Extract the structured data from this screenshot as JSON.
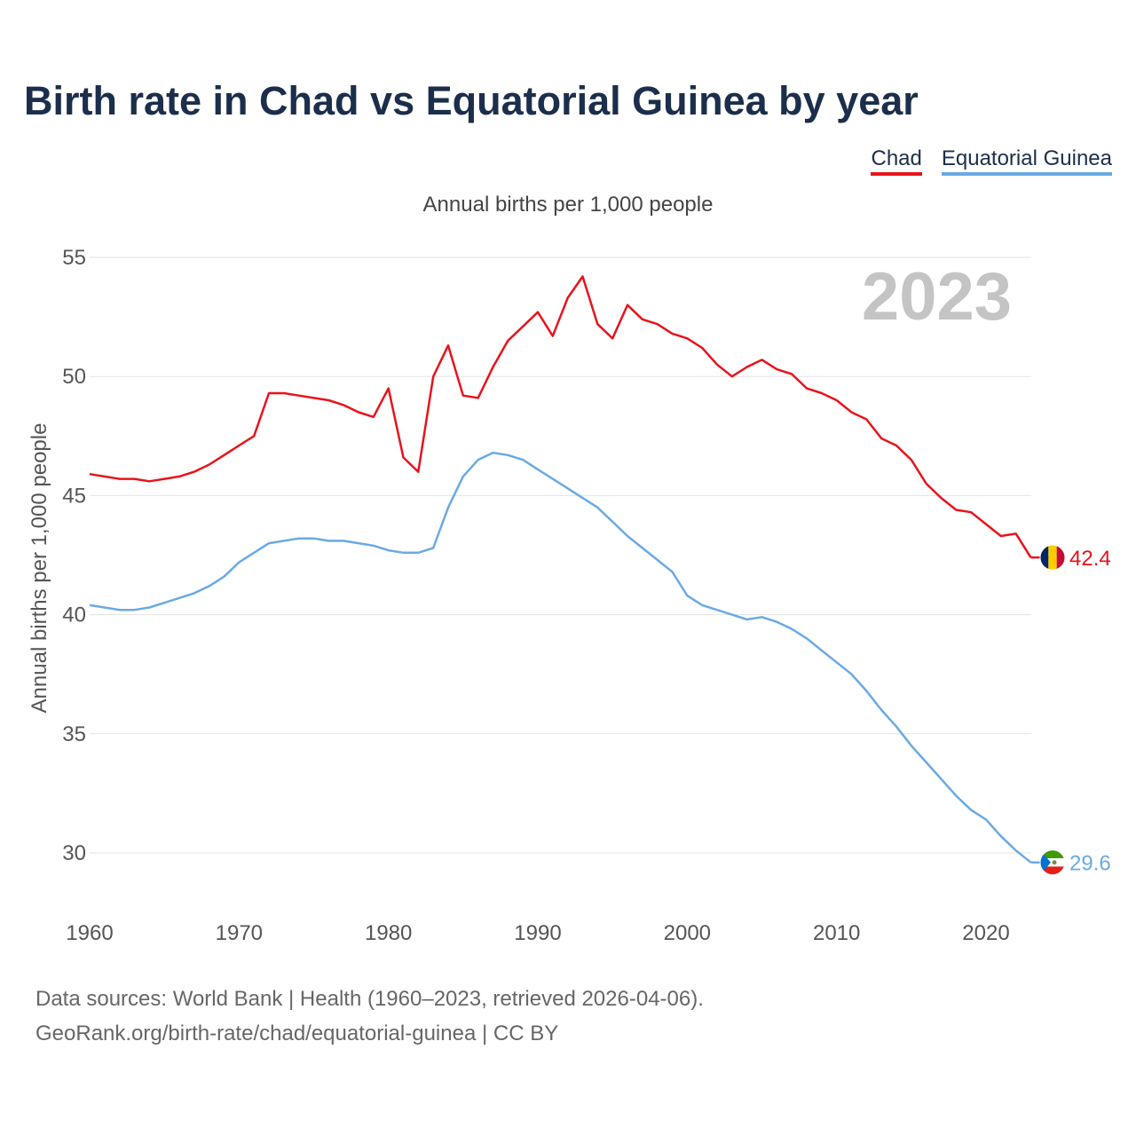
{
  "title": "Birth rate in Chad vs Equatorial Guinea by year",
  "legend": [
    {
      "name": "Chad",
      "color": "#e8131b"
    },
    {
      "name": "Equatorial Guinea",
      "color": "#6aaae4"
    }
  ],
  "subtitle": "Annual births per 1,000 people",
  "year_label": "2023",
  "source": {
    "line1": "Data sources: World Bank | Health (1960–2023, retrieved 2026-04-06).",
    "line2": "GeoRank.org/birth-rate/chad/equatorial-guinea | CC BY"
  },
  "chart_data": {
    "type": "line",
    "title": "Birth rate in Chad vs Equatorial Guinea by year",
    "xlabel": "",
    "ylabel": "Annual births per 1,000 people",
    "xlim": [
      1960,
      2024
    ],
    "ylim": [
      28,
      56
    ],
    "xticks": [
      "1960",
      "1970",
      "1980",
      "1990",
      "2000",
      "2010",
      "2020"
    ],
    "yticks": [
      "30",
      "35",
      "40",
      "45",
      "50",
      "55"
    ],
    "grid": true,
    "legend_position": "top-right",
    "x": [
      1960,
      1961,
      1962,
      1963,
      1964,
      1965,
      1966,
      1967,
      1968,
      1969,
      1970,
      1971,
      1972,
      1973,
      1974,
      1975,
      1976,
      1977,
      1978,
      1979,
      1980,
      1981,
      1982,
      1983,
      1984,
      1985,
      1986,
      1987,
      1988,
      1989,
      1990,
      1991,
      1992,
      1993,
      1994,
      1995,
      1996,
      1997,
      1998,
      1999,
      2000,
      2001,
      2002,
      2003,
      2004,
      2005,
      2006,
      2007,
      2008,
      2009,
      2010,
      2011,
      2012,
      2013,
      2014,
      2015,
      2016,
      2017,
      2018,
      2019,
      2020,
      2021,
      2022,
      2023
    ],
    "series": [
      {
        "name": "Chad",
        "color": "#e8131b",
        "end_label": "42.4",
        "values": [
          45.9,
          45.8,
          45.7,
          45.7,
          45.6,
          45.7,
          45.8,
          46.0,
          46.3,
          46.7,
          47.1,
          47.5,
          49.3,
          49.3,
          49.2,
          49.1,
          49.0,
          48.8,
          48.5,
          48.3,
          49.5,
          46.6,
          46.0,
          50.0,
          51.3,
          49.2,
          49.1,
          50.4,
          51.5,
          52.1,
          52.7,
          51.7,
          53.3,
          54.2,
          52.2,
          51.6,
          53.0,
          52.4,
          52.2,
          51.8,
          51.6,
          51.2,
          50.5,
          50.0,
          50.4,
          50.7,
          50.3,
          50.1,
          49.5,
          49.3,
          49.0,
          48.5,
          48.2,
          47.4,
          47.1,
          46.5,
          45.5,
          44.9,
          44.4,
          44.3,
          43.8,
          43.3,
          43.4,
          42.4
        ]
      },
      {
        "name": "Equatorial Guinea",
        "color": "#6aaae4",
        "end_label": "29.6",
        "values": [
          40.4,
          40.3,
          40.2,
          40.2,
          40.3,
          40.5,
          40.7,
          40.9,
          41.2,
          41.6,
          42.2,
          42.6,
          43.0,
          43.1,
          43.2,
          43.2,
          43.1,
          43.1,
          43.0,
          42.9,
          42.7,
          42.6,
          42.6,
          42.8,
          44.5,
          45.8,
          46.5,
          46.8,
          46.7,
          46.5,
          46.1,
          45.7,
          45.3,
          44.9,
          44.5,
          43.9,
          43.3,
          42.8,
          42.3,
          41.8,
          40.8,
          40.4,
          40.2,
          40.0,
          39.8,
          39.9,
          39.7,
          39.4,
          39.0,
          38.5,
          38.0,
          37.5,
          36.8,
          36.0,
          35.3,
          34.5,
          33.8,
          33.1,
          32.4,
          31.8,
          31.4,
          30.7,
          30.1,
          29.6
        ]
      }
    ]
  }
}
